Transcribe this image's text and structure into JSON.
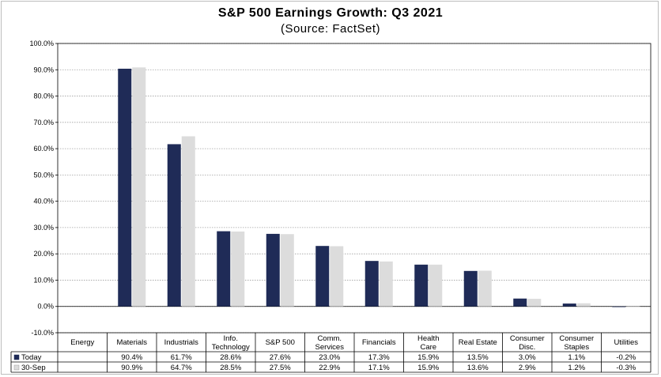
{
  "chart_data": {
    "type": "bar",
    "title": "S&P 500 Earnings Growth: Q3 2021",
    "subtitle": "(Source: FactSet)",
    "categories": [
      [
        "Energy"
      ],
      [
        "Materials"
      ],
      [
        "Industrials"
      ],
      [
        "Info.",
        "Technology"
      ],
      [
        "S&P 500"
      ],
      [
        "Comm.",
        "Services"
      ],
      [
        "Financials"
      ],
      [
        "Health",
        "Care"
      ],
      [
        "Real Estate"
      ],
      [
        "Consumer",
        "Disc."
      ],
      [
        "Consumer",
        "Staples"
      ],
      [
        "Utilities"
      ]
    ],
    "series": [
      {
        "name": "Today",
        "color": "#1f2b57",
        "values": [
          null,
          90.4,
          61.7,
          28.6,
          27.6,
          23.0,
          17.3,
          15.9,
          13.5,
          3.0,
          1.1,
          -0.2
        ],
        "labels": [
          "",
          "90.4%",
          "61.7%",
          "28.6%",
          "27.6%",
          "23.0%",
          "17.3%",
          "15.9%",
          "13.5%",
          "3.0%",
          "1.1%",
          "-0.2%"
        ]
      },
      {
        "name": "30-Sep",
        "color": "#dcdcdc",
        "values": [
          null,
          90.9,
          64.7,
          28.5,
          27.5,
          22.9,
          17.1,
          15.9,
          13.6,
          2.9,
          1.2,
          -0.3
        ],
        "labels": [
          "",
          "90.9%",
          "64.7%",
          "28.5%",
          "27.5%",
          "22.9%",
          "17.1%",
          "15.9%",
          "13.6%",
          "2.9%",
          "1.2%",
          "-0.3%"
        ]
      }
    ],
    "yticks": [
      "100.0%",
      "90.0%",
      "80.0%",
      "70.0%",
      "60.0%",
      "50.0%",
      "40.0%",
      "30.0%",
      "20.0%",
      "10.0%",
      "0.0%",
      "-10.0%"
    ],
    "ylim": [
      -10,
      100
    ],
    "grid": true,
    "legend": "data table below chart"
  }
}
